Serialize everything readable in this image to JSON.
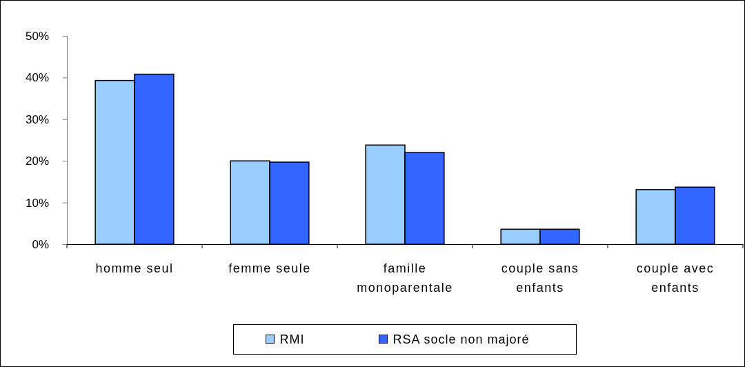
{
  "chart_data": {
    "type": "bar",
    "categories": [
      "homme seul",
      "femme seule",
      "famille monoparentale",
      "couple sans enfants",
      "couple avec enfants"
    ],
    "series": [
      {
        "name": "RMI",
        "color": "#99ccff",
        "values": [
          39.3,
          20.0,
          23.8,
          3.6,
          13.1
        ]
      },
      {
        "name": "RSA socle non majoré",
        "color": "#3366ff",
        "values": [
          40.8,
          19.7,
          22.0,
          3.6,
          13.7
        ]
      }
    ],
    "ylim": [
      0,
      50
    ],
    "yticks": [
      {
        "value": 0,
        "label": "0%"
      },
      {
        "value": 10,
        "label": "10%"
      },
      {
        "value": 20,
        "label": "20%"
      },
      {
        "value": 30,
        "label": "30%"
      },
      {
        "value": 40,
        "label": "40%"
      },
      {
        "value": 50,
        "label": "50%"
      }
    ],
    "legend": "bottom"
  }
}
